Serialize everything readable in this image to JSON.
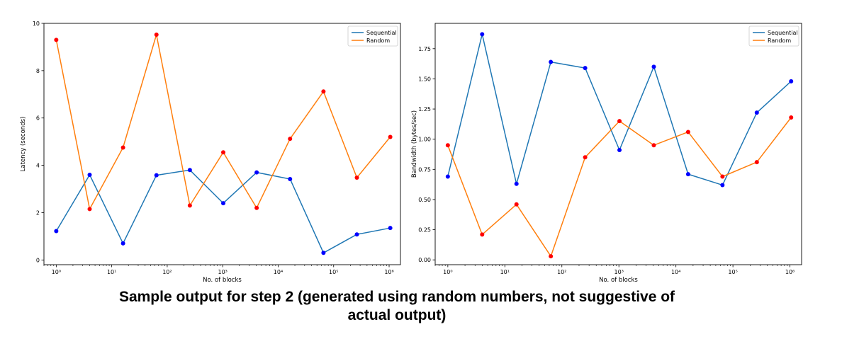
{
  "chart_data": [
    {
      "type": "line",
      "xlabel": "No. of blocks",
      "ylabel": "Latency (seconds)",
      "xscale": "log",
      "xlim": [
        0.6,
        1600000
      ],
      "ylim": [
        -0.2,
        10
      ],
      "xticks": [
        1,
        10,
        100,
        1000,
        10000,
        100000,
        1000000
      ],
      "xtick_labels": [
        "10⁰",
        "10¹",
        "10²",
        "10³",
        "10⁴",
        "10⁵",
        "10⁶"
      ],
      "yticks": [
        0,
        2,
        4,
        6,
        8,
        10
      ],
      "ytick_labels": [
        "0",
        "2",
        "4",
        "6",
        "8",
        "10"
      ],
      "legend": "top-right",
      "grid": false,
      "x": [
        1,
        4,
        16,
        64,
        256,
        1024,
        4096,
        16384,
        65536,
        262144,
        1048576
      ],
      "series": [
        {
          "name": "Sequential",
          "color": "#1f77b4",
          "marker_color": "#0000ff",
          "values": [
            1.22,
            3.6,
            0.7,
            3.58,
            3.8,
            2.4,
            3.7,
            3.42,
            0.3,
            1.08,
            1.35
          ]
        },
        {
          "name": "Random",
          "color": "#ff7f0e",
          "marker_color": "#ff0000",
          "values": [
            9.3,
            2.15,
            4.75,
            9.52,
            2.3,
            4.55,
            2.2,
            5.12,
            7.12,
            3.48,
            5.2
          ]
        }
      ]
    },
    {
      "type": "line",
      "xlabel": "No. of blocks",
      "ylabel": "Bandwidth (bytes/sec)",
      "xscale": "log",
      "xlim": [
        0.6,
        1600000
      ],
      "ylim": [
        -0.04,
        1.96
      ],
      "xticks": [
        1,
        10,
        100,
        1000,
        10000,
        100000,
        1000000
      ],
      "xtick_labels": [
        "10⁰",
        "10¹",
        "10²",
        "10³",
        "10⁴",
        "10⁵",
        "10⁶"
      ],
      "yticks": [
        0,
        0.25,
        0.5,
        0.75,
        1.0,
        1.25,
        1.5,
        1.75
      ],
      "ytick_labels": [
        "0.00",
        "0.25",
        "0.50",
        "0.75",
        "1.00",
        "1.25",
        "1.50",
        "1.75"
      ],
      "legend": "top-right",
      "grid": false,
      "x": [
        1,
        4,
        16,
        64,
        256,
        1024,
        4096,
        16384,
        65536,
        262144,
        1048576
      ],
      "series": [
        {
          "name": "Sequential",
          "color": "#1f77b4",
          "marker_color": "#0000ff",
          "values": [
            0.69,
            1.87,
            0.63,
            1.64,
            1.59,
            0.91,
            1.6,
            0.71,
            0.62,
            1.22,
            1.48
          ]
        },
        {
          "name": "Random",
          "color": "#ff7f0e",
          "marker_color": "#ff0000",
          "values": [
            0.95,
            0.21,
            0.46,
            0.03,
            0.85,
            1.15,
            0.95,
            1.06,
            0.69,
            0.81,
            1.18
          ]
        }
      ]
    }
  ],
  "caption": {
    "line1": "Sample output for step 2 (generated using random numbers, not suggestive of",
    "line2": "actual output)"
  }
}
